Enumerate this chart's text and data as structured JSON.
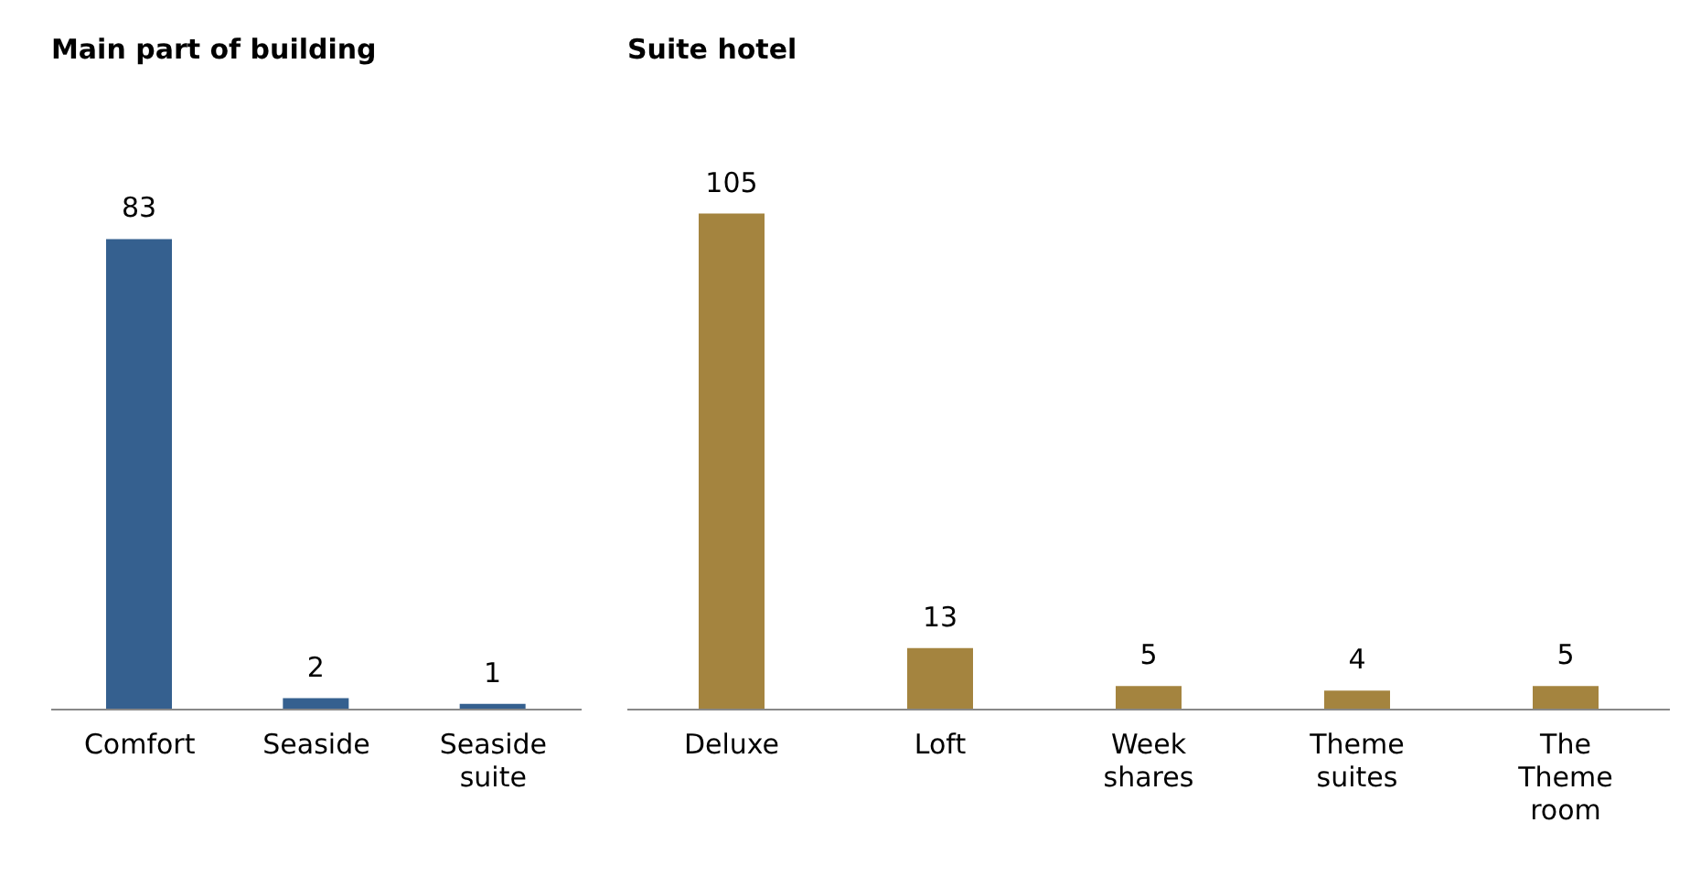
{
  "chart_data": [
    {
      "type": "bar",
      "title": "Main part of building",
      "categories": [
        "Comfort",
        "Seaside",
        "Seaside suite"
      ],
      "values": [
        83,
        2,
        1
      ],
      "color": "#35608f",
      "data_labels": true
    },
    {
      "type": "bar",
      "title": "Suite hotel",
      "categories": [
        "Deluxe",
        "Loft",
        "Week shares",
        "Theme suites",
        "The Theme room"
      ],
      "values": [
        105,
        13,
        5,
        4,
        5
      ],
      "color": "#a4843f",
      "data_labels": true
    }
  ]
}
